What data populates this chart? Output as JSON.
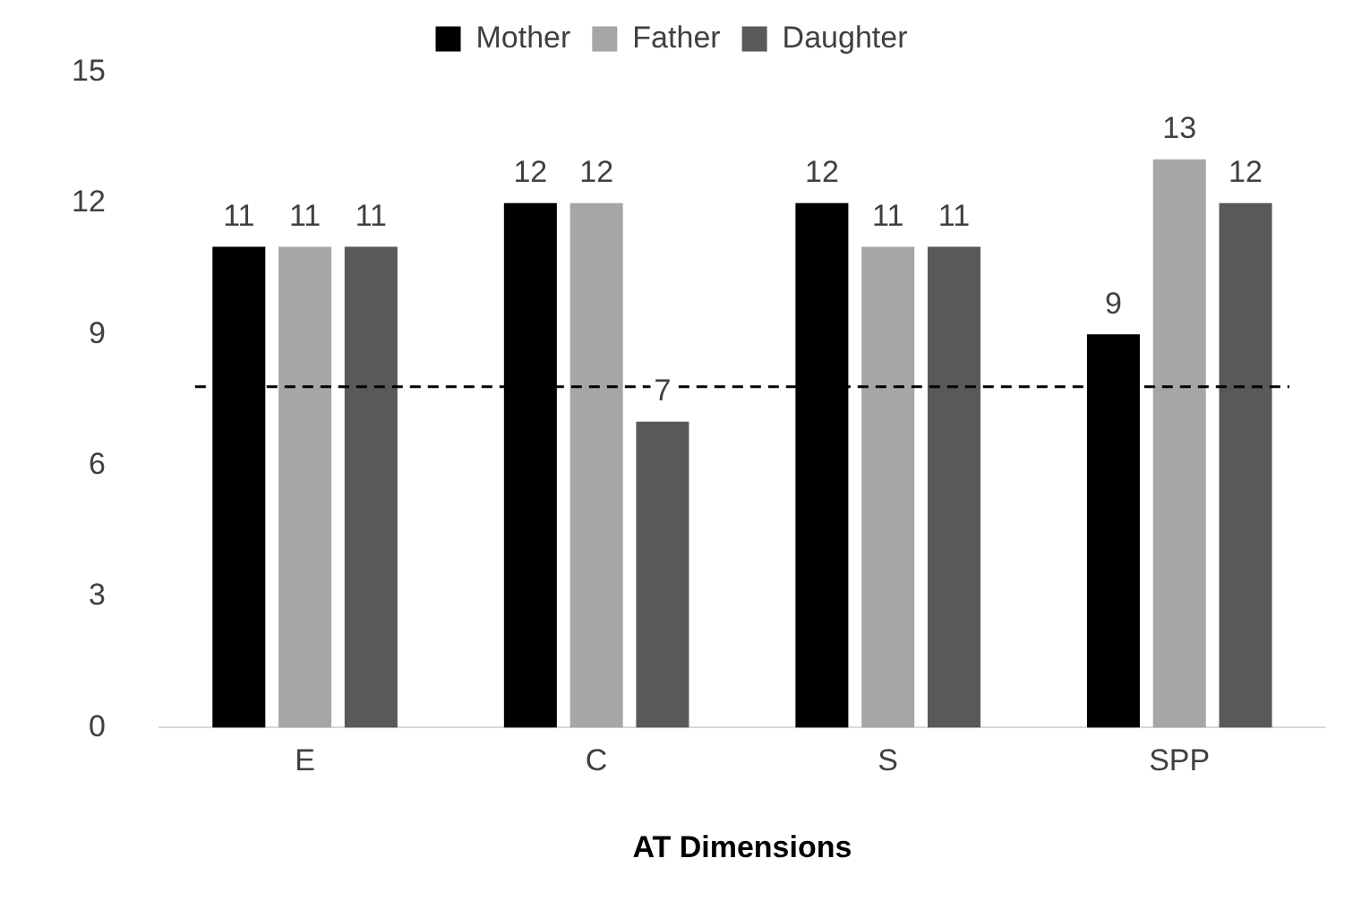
{
  "chart_data": {
    "type": "bar",
    "xlabel": "AT Dimensions",
    "categories": [
      "E",
      "C",
      "S",
      "SPP"
    ],
    "series": [
      {
        "name": "Mother",
        "color": "#000000",
        "values": [
          11,
          12,
          12,
          9
        ]
      },
      {
        "name": "Father",
        "color": "#a6a6a6",
        "values": [
          11,
          12,
          11,
          13
        ]
      },
      {
        "name": "Daughter",
        "color": "#595959",
        "values": [
          11,
          7,
          11,
          12
        ]
      }
    ],
    "ylim": [
      0,
      15
    ],
    "yticks": [
      0,
      3,
      6,
      9,
      12,
      15
    ],
    "grid": false,
    "legend": "top",
    "data_labels": true,
    "ref_lines": [
      {
        "axis": "y",
        "value": 7.8,
        "color": "#000000",
        "line_style": "dashed"
      }
    ]
  }
}
